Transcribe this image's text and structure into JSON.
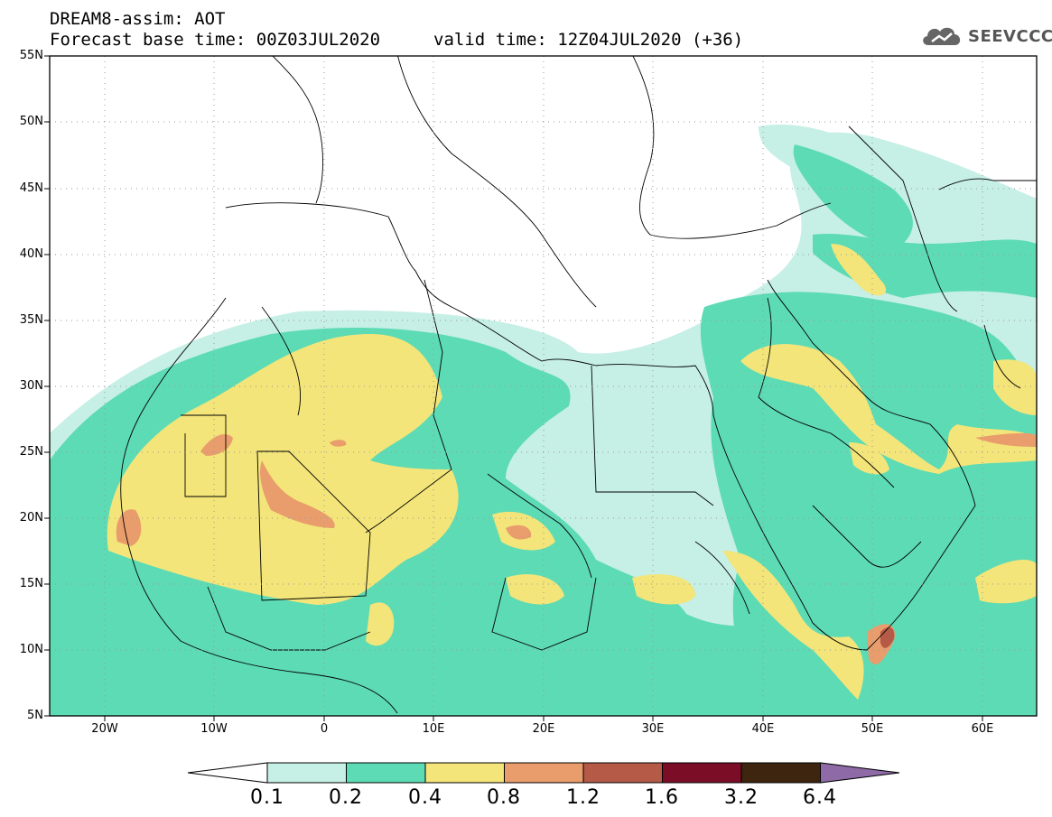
{
  "header": {
    "line1": "DREAM8-assim: AOT",
    "line2": "Forecast base time: 00Z03JUL2020",
    "valid": "valid time: 12Z04JUL2020 (+36)"
  },
  "logo": {
    "text": "SEEVCCC",
    "icon": "cloud-icon"
  },
  "axes": {
    "lat_labels": [
      "55N",
      "50N",
      "45N",
      "40N",
      "35N",
      "30N",
      "25N",
      "20N",
      "15N",
      "10N",
      "5N"
    ],
    "lon_labels": [
      "20W",
      "10W",
      "0",
      "10E",
      "20E",
      "30E",
      "40E",
      "50E",
      "60E"
    ]
  },
  "legend": {
    "colors": [
      "#ffffff",
      "#c6efe6",
      "#5ddbb4",
      "#f3e57a",
      "#e99d6c",
      "#b55a47",
      "#7b0d27",
      "#3d2510",
      "#8e6aa7"
    ],
    "labels": [
      "0.1",
      "0.2",
      "0.4",
      "0.8",
      "1.2",
      "1.6",
      "3.2",
      "6.4"
    ]
  }
}
